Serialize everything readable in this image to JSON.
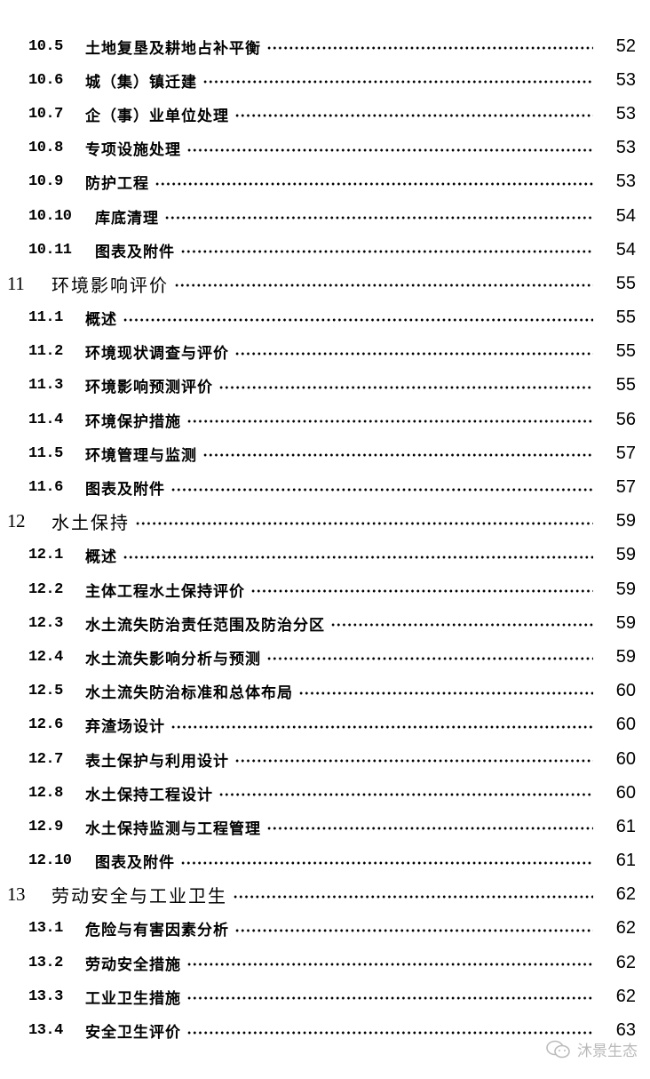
{
  "entries": [
    {
      "level": 2,
      "number": "10.5",
      "title": "土地复垦及耕地占补平衡",
      "page": "52"
    },
    {
      "level": 2,
      "number": "10.6",
      "title": "城（集）镇迁建",
      "page": "53"
    },
    {
      "level": 2,
      "number": "10.7",
      "title": "企（事）业单位处理",
      "page": "53"
    },
    {
      "level": 2,
      "number": "10.8",
      "title": "专项设施处理",
      "page": "53"
    },
    {
      "level": 2,
      "number": "10.9",
      "title": "防护工程",
      "page": "53"
    },
    {
      "level": 2,
      "number": "10.10",
      "title": "库底清理",
      "page": "54"
    },
    {
      "level": 2,
      "number": "10.11",
      "title": "图表及附件",
      "page": "54"
    },
    {
      "level": 1,
      "number": "11",
      "title": "环境影响评价",
      "page": "55"
    },
    {
      "level": 2,
      "number": "11.1",
      "title": "概述",
      "page": "55"
    },
    {
      "level": 2,
      "number": "11.2",
      "title": "环境现状调查与评价",
      "page": "55"
    },
    {
      "level": 2,
      "number": "11.3",
      "title": "环境影响预测评价",
      "page": "55"
    },
    {
      "level": 2,
      "number": "11.4",
      "title": "环境保护措施",
      "page": "56"
    },
    {
      "level": 2,
      "number": "11.5",
      "title": "环境管理与监测",
      "page": "57"
    },
    {
      "level": 2,
      "number": "11.6",
      "title": "图表及附件",
      "page": "57"
    },
    {
      "level": 1,
      "number": "12",
      "title": "水土保持",
      "page": "59"
    },
    {
      "level": 2,
      "number": "12.1",
      "title": "概述",
      "page": "59"
    },
    {
      "level": 2,
      "number": "12.2",
      "title": "主体工程水土保持评价",
      "page": "59"
    },
    {
      "level": 2,
      "number": "12.3",
      "title": "水土流失防治责任范围及防治分区",
      "page": "59"
    },
    {
      "level": 2,
      "number": "12.4",
      "title": "水土流失影响分析与预测",
      "page": "59"
    },
    {
      "level": 2,
      "number": "12.5",
      "title": "水土流失防治标准和总体布局",
      "page": "60"
    },
    {
      "level": 2,
      "number": "12.6",
      "title": "弃渣场设计",
      "page": "60"
    },
    {
      "level": 2,
      "number": "12.7",
      "title": "表土保护与利用设计",
      "page": "60"
    },
    {
      "level": 2,
      "number": "12.8",
      "title": "水土保持工程设计",
      "page": "60"
    },
    {
      "level": 2,
      "number": "12.9",
      "title": "水土保持监测与工程管理",
      "page": "61"
    },
    {
      "level": 2,
      "number": "12.10",
      "title": "图表及附件",
      "page": "61"
    },
    {
      "level": 1,
      "number": "13",
      "title": "劳动安全与工业卫生",
      "page": "62"
    },
    {
      "level": 2,
      "number": "13.1",
      "title": "危险与有害因素分析",
      "page": "62"
    },
    {
      "level": 2,
      "number": "13.2",
      "title": "劳动安全措施",
      "page": "62"
    },
    {
      "level": 2,
      "number": "13.3",
      "title": "工业卫生措施",
      "page": "62"
    },
    {
      "level": 2,
      "number": "13.4",
      "title": "安全卫生评价",
      "page": "63"
    }
  ],
  "watermark": {
    "icon": "wechat-icon",
    "text": "沐景生态"
  }
}
